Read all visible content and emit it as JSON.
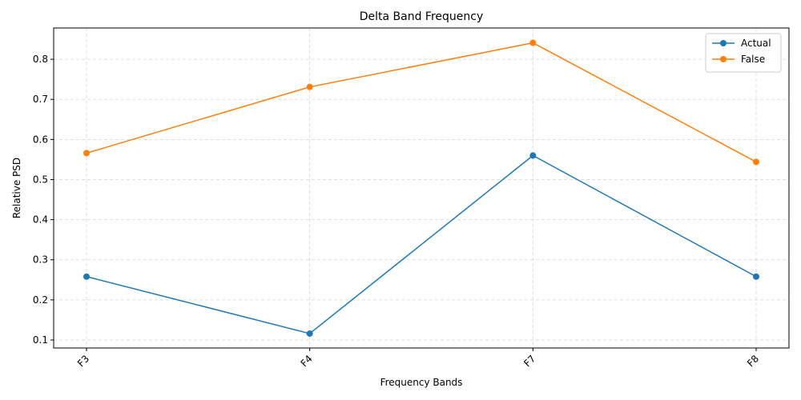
{
  "chart_data": {
    "type": "line",
    "title": "Delta Band Frequency",
    "xlabel": "Frequency Bands",
    "ylabel": "Relative PSD",
    "categories": [
      "F3",
      "F4",
      "F7",
      "F8"
    ],
    "series": [
      {
        "name": "Actual",
        "values": [
          0.258,
          0.116,
          0.56,
          0.258
        ],
        "color": "#1f77b4"
      },
      {
        "name": "False",
        "values": [
          0.566,
          0.731,
          0.841,
          0.544
        ],
        "color": "#ff7f0e"
      }
    ],
    "ylim": [
      0.08,
      0.878
    ],
    "yticks": [
      0.1,
      0.2,
      0.3,
      0.4,
      0.5,
      0.6,
      0.7,
      0.8
    ],
    "ytick_labels": [
      "0.1",
      "0.2",
      "0.3",
      "0.4",
      "0.5",
      "0.6",
      "0.7",
      "0.8"
    ],
    "grid": true,
    "legend_position": "top-right"
  }
}
